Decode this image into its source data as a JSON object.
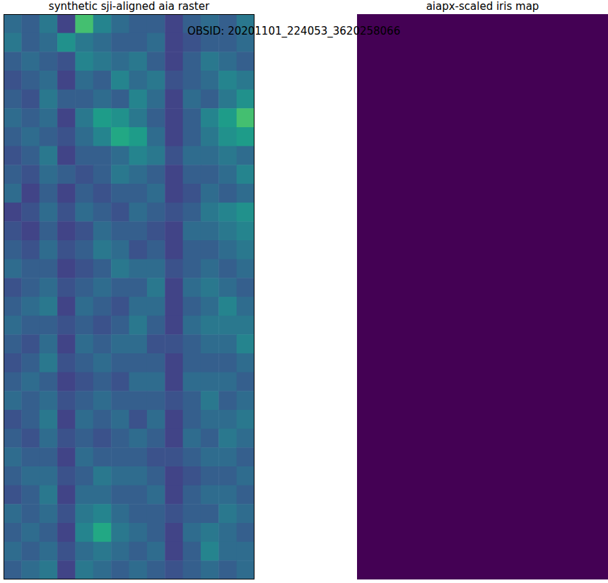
{
  "title": "OBSID: 20201101_224053_3620258066",
  "chart_data": [
    {
      "type": "heatmap",
      "title": "synthetic sji-aligned aia raster",
      "color": "viridis",
      "tick_labels": false,
      "color_range": [
        0,
        1
      ],
      "cells": [
        [
          0.35,
          0.3,
          0.4,
          0.2,
          0.7,
          0.45,
          0.35,
          0.3,
          0.3,
          0.2,
          0.3,
          0.35,
          0.3,
          0.4
        ],
        [
          0.4,
          0.3,
          0.35,
          0.5,
          0.4,
          0.35,
          0.3,
          0.3,
          0.35,
          0.2,
          0.25,
          0.3,
          0.3,
          0.35
        ],
        [
          0.3,
          0.35,
          0.3,
          0.25,
          0.45,
          0.4,
          0.35,
          0.4,
          0.3,
          0.2,
          0.3,
          0.4,
          0.35,
          0.3
        ],
        [
          0.25,
          0.3,
          0.35,
          0.2,
          0.35,
          0.3,
          0.45,
          0.35,
          0.4,
          0.25,
          0.3,
          0.35,
          0.45,
          0.4
        ],
        [
          0.3,
          0.25,
          0.4,
          0.3,
          0.3,
          0.35,
          0.3,
          0.45,
          0.35,
          0.2,
          0.35,
          0.3,
          0.4,
          0.5
        ],
        [
          0.35,
          0.3,
          0.35,
          0.2,
          0.4,
          0.55,
          0.5,
          0.4,
          0.3,
          0.2,
          0.3,
          0.45,
          0.55,
          0.7
        ],
        [
          0.3,
          0.35,
          0.3,
          0.25,
          0.35,
          0.45,
          0.6,
          0.55,
          0.35,
          0.2,
          0.3,
          0.4,
          0.5,
          0.55
        ],
        [
          0.25,
          0.3,
          0.4,
          0.2,
          0.3,
          0.3,
          0.35,
          0.45,
          0.4,
          0.25,
          0.35,
          0.35,
          0.4,
          0.35
        ],
        [
          0.3,
          0.25,
          0.35,
          0.3,
          0.25,
          0.3,
          0.4,
          0.35,
          0.3,
          0.2,
          0.3,
          0.3,
          0.35,
          0.45
        ],
        [
          0.35,
          0.2,
          0.3,
          0.2,
          0.3,
          0.25,
          0.3,
          0.3,
          0.35,
          0.2,
          0.25,
          0.35,
          0.3,
          0.35
        ],
        [
          0.2,
          0.25,
          0.35,
          0.25,
          0.35,
          0.3,
          0.25,
          0.35,
          0.3,
          0.25,
          0.3,
          0.4,
          0.45,
          0.5
        ],
        [
          0.25,
          0.2,
          0.3,
          0.2,
          0.25,
          0.35,
          0.3,
          0.3,
          0.25,
          0.2,
          0.35,
          0.35,
          0.4,
          0.45
        ],
        [
          0.3,
          0.25,
          0.35,
          0.25,
          0.3,
          0.4,
          0.35,
          0.25,
          0.3,
          0.2,
          0.3,
          0.3,
          0.35,
          0.4
        ],
        [
          0.35,
          0.3,
          0.3,
          0.2,
          0.25,
          0.3,
          0.4,
          0.35,
          0.35,
          0.25,
          0.3,
          0.35,
          0.3,
          0.35
        ],
        [
          0.25,
          0.3,
          0.35,
          0.25,
          0.3,
          0.35,
          0.3,
          0.3,
          0.4,
          0.2,
          0.35,
          0.4,
          0.35,
          0.3
        ],
        [
          0.3,
          0.35,
          0.4,
          0.2,
          0.35,
          0.3,
          0.25,
          0.35,
          0.35,
          0.2,
          0.3,
          0.35,
          0.45,
          0.35
        ],
        [
          0.35,
          0.3,
          0.3,
          0.25,
          0.3,
          0.25,
          0.3,
          0.4,
          0.3,
          0.2,
          0.35,
          0.4,
          0.4,
          0.4
        ],
        [
          0.3,
          0.25,
          0.35,
          0.2,
          0.35,
          0.3,
          0.35,
          0.35,
          0.25,
          0.25,
          0.3,
          0.35,
          0.35,
          0.45
        ],
        [
          0.25,
          0.3,
          0.4,
          0.25,
          0.3,
          0.35,
          0.3,
          0.3,
          0.3,
          0.2,
          0.3,
          0.3,
          0.3,
          0.35
        ],
        [
          0.3,
          0.35,
          0.3,
          0.2,
          0.25,
          0.3,
          0.25,
          0.35,
          0.35,
          0.2,
          0.35,
          0.35,
          0.35,
          0.3
        ],
        [
          0.35,
          0.3,
          0.35,
          0.25,
          0.3,
          0.35,
          0.3,
          0.3,
          0.3,
          0.25,
          0.3,
          0.4,
          0.3,
          0.35
        ],
        [
          0.25,
          0.3,
          0.4,
          0.2,
          0.35,
          0.3,
          0.35,
          0.25,
          0.35,
          0.2,
          0.3,
          0.35,
          0.35,
          0.4
        ],
        [
          0.3,
          0.25,
          0.35,
          0.25,
          0.3,
          0.25,
          0.3,
          0.35,
          0.3,
          0.2,
          0.35,
          0.3,
          0.4,
          0.35
        ],
        [
          0.35,
          0.3,
          0.3,
          0.2,
          0.35,
          0.3,
          0.3,
          0.3,
          0.25,
          0.25,
          0.3,
          0.35,
          0.35,
          0.3
        ],
        [
          0.3,
          0.35,
          0.35,
          0.25,
          0.3,
          0.4,
          0.35,
          0.35,
          0.3,
          0.2,
          0.25,
          0.3,
          0.3,
          0.35
        ],
        [
          0.25,
          0.3,
          0.4,
          0.2,
          0.35,
          0.35,
          0.3,
          0.3,
          0.35,
          0.2,
          0.3,
          0.35,
          0.35,
          0.3
        ],
        [
          0.35,
          0.3,
          0.35,
          0.25,
          0.4,
          0.45,
          0.35,
          0.3,
          0.3,
          0.25,
          0.3,
          0.3,
          0.4,
          0.35
        ],
        [
          0.3,
          0.35,
          0.3,
          0.2,
          0.45,
          0.6,
          0.4,
          0.35,
          0.3,
          0.2,
          0.35,
          0.4,
          0.35,
          0.3
        ],
        [
          0.35,
          0.3,
          0.35,
          0.25,
          0.35,
          0.4,
          0.35,
          0.3,
          0.35,
          0.2,
          0.3,
          0.45,
          0.35,
          0.35
        ],
        [
          0.3,
          0.35,
          0.4,
          0.2,
          0.4,
          0.35,
          0.3,
          0.35,
          0.3,
          0.25,
          0.3,
          0.35,
          0.3,
          0.35
        ]
      ]
    },
    {
      "type": "heatmap",
      "title": "aiapx-scaled iris map",
      "color": "viridis",
      "tick_labels": false,
      "color_range": [
        0,
        1
      ],
      "cells": [
        [
          0
        ]
      ]
    }
  ]
}
